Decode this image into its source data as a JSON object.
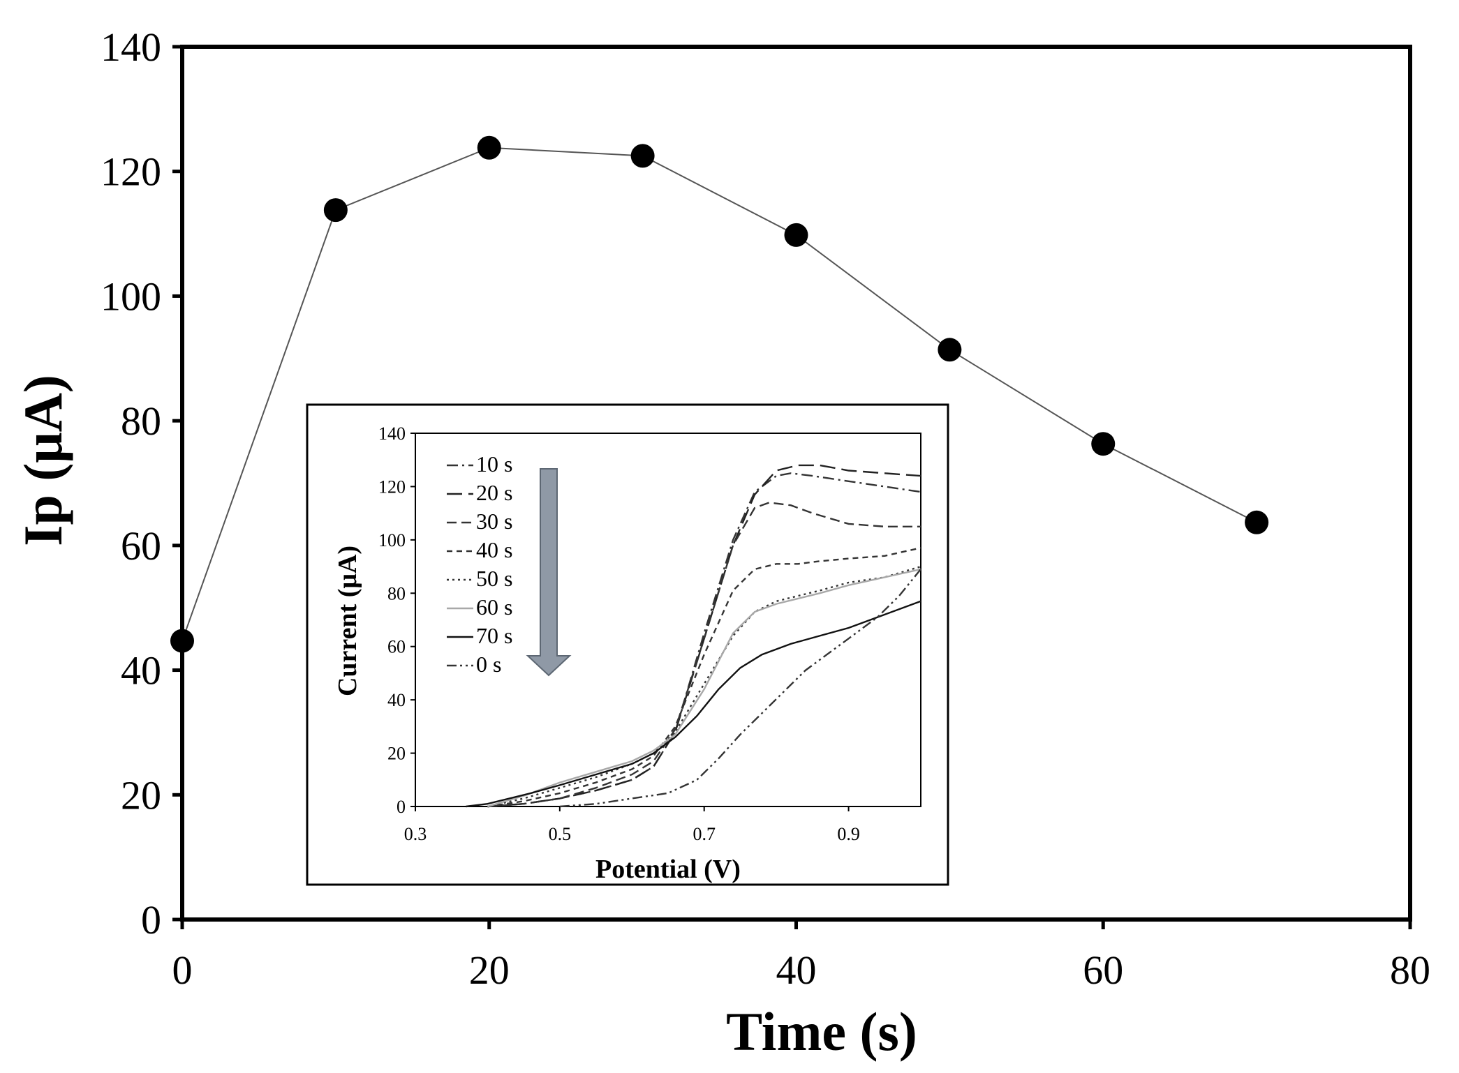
{
  "chart_data": [
    {
      "type": "line",
      "role": "main",
      "title": "",
      "xlabel": "Time (s)",
      "ylabel": "Ip (μA)",
      "xlim": [
        0,
        80
      ],
      "ylim": [
        0,
        140
      ],
      "xticks": [
        0,
        20,
        40,
        60,
        80
      ],
      "yticks": [
        0,
        20,
        40,
        60,
        80,
        100,
        120,
        140
      ],
      "grid": false,
      "series": [
        {
          "name": "Ip",
          "marker": "filled-circle",
          "color": "#000000",
          "line_color": "#555555",
          "x": [
            0,
            10,
            20,
            30,
            40,
            50,
            60,
            70
          ],
          "y": [
            44.7,
            113.8,
            123.8,
            122.5,
            109.8,
            91.4,
            76.3,
            63.7
          ]
        }
      ]
    },
    {
      "type": "line",
      "role": "inset",
      "title": "",
      "xlabel": "Potential (V)",
      "ylabel": "Current (μA)",
      "xlim": [
        0.3,
        1.0
      ],
      "ylim": [
        0,
        140
      ],
      "xticks": [
        0.3,
        0.5,
        0.7,
        0.9
      ],
      "yticks": [
        0,
        20,
        40,
        60,
        80,
        100,
        120,
        140
      ],
      "grid": false,
      "legend": "top-left",
      "arrow": {
        "direction": "down",
        "from_series": "10 s",
        "to_series": "0 s",
        "color": "#7f8c99"
      },
      "series": [
        {
          "name": "10 s",
          "dash": "dash-dot",
          "color": "#333333",
          "x": [
            0.4,
            0.45,
            0.5,
            0.55,
            0.6,
            0.63,
            0.66,
            0.7,
            0.74,
            0.77,
            0.8,
            0.82,
            0.85,
            0.9,
            0.95,
            1.0
          ],
          "y": [
            0,
            1,
            3,
            6,
            10,
            15,
            28,
            65,
            100,
            118,
            124,
            125,
            124,
            122,
            120,
            118
          ]
        },
        {
          "name": "20 s",
          "dash": "long-dash",
          "color": "#222222",
          "x": [
            0.4,
            0.45,
            0.5,
            0.55,
            0.6,
            0.63,
            0.66,
            0.7,
            0.74,
            0.77,
            0.8,
            0.83,
            0.86,
            0.9,
            0.95,
            1.0
          ],
          "y": [
            0,
            1,
            3,
            6,
            10,
            15,
            28,
            63,
            98,
            117,
            126,
            128,
            128,
            126,
            125,
            124
          ]
        },
        {
          "name": "30 s",
          "dash": "dash",
          "color": "#333333",
          "x": [
            0.4,
            0.45,
            0.5,
            0.55,
            0.6,
            0.63,
            0.66,
            0.7,
            0.74,
            0.77,
            0.79,
            0.82,
            0.85,
            0.9,
            0.95,
            1.0
          ],
          "y": [
            0,
            1,
            3,
            7,
            12,
            17,
            29,
            63,
            98,
            112,
            114,
            113,
            110,
            106,
            105,
            105
          ]
        },
        {
          "name": "40 s",
          "dash": "short-dash",
          "color": "#333333",
          "x": [
            0.4,
            0.45,
            0.5,
            0.55,
            0.6,
            0.63,
            0.66,
            0.7,
            0.74,
            0.77,
            0.8,
            0.83,
            0.86,
            0.9,
            0.95,
            1.0
          ],
          "y": [
            0,
            2,
            5,
            9,
            14,
            19,
            30,
            57,
            81,
            89,
            91,
            91,
            92,
            93,
            94,
            97
          ]
        },
        {
          "name": "50 s",
          "dash": "dot",
          "color": "#333333",
          "x": [
            0.4,
            0.45,
            0.5,
            0.55,
            0.6,
            0.63,
            0.66,
            0.7,
            0.74,
            0.77,
            0.8,
            0.83,
            0.86,
            0.9,
            0.95,
            1.0
          ],
          "y": [
            0,
            3,
            7,
            11,
            16,
            20,
            28,
            46,
            64,
            73,
            77,
            79,
            81,
            84,
            86,
            90
          ]
        },
        {
          "name": "60 s",
          "dash": "solid",
          "color": "#a8a8a8",
          "x": [
            0.4,
            0.45,
            0.5,
            0.55,
            0.6,
            0.63,
            0.66,
            0.7,
            0.74,
            0.77,
            0.8,
            0.83,
            0.86,
            0.9,
            0.95,
            1.0
          ],
          "y": [
            0,
            4,
            9,
            13,
            17,
            21,
            27,
            44,
            65,
            73,
            76,
            78,
            80,
            83,
            86,
            89
          ]
        },
        {
          "name": "70 s",
          "dash": "solid",
          "color": "#111111",
          "x": [
            0.37,
            0.4,
            0.43,
            0.46,
            0.5,
            0.55,
            0.6,
            0.63,
            0.66,
            0.69,
            0.72,
            0.75,
            0.78,
            0.82,
            0.86,
            0.9,
            0.95,
            1.0
          ],
          "y": [
            0,
            1,
            3,
            5,
            8,
            12,
            16,
            20,
            26,
            34,
            44,
            52,
            57,
            61,
            64,
            67,
            72,
            77
          ]
        },
        {
          "name": "0 s",
          "dash": "dash-dot-dot",
          "color": "#333333",
          "x": [
            0.5,
            0.55,
            0.6,
            0.65,
            0.69,
            0.72,
            0.75,
            0.78,
            0.81,
            0.84,
            0.87,
            0.9,
            0.94,
            0.97,
            1.0
          ],
          "y": [
            0,
            1,
            3,
            5,
            10,
            18,
            27,
            35,
            43,
            51,
            57,
            63,
            71,
            79,
            89
          ]
        }
      ]
    }
  ]
}
